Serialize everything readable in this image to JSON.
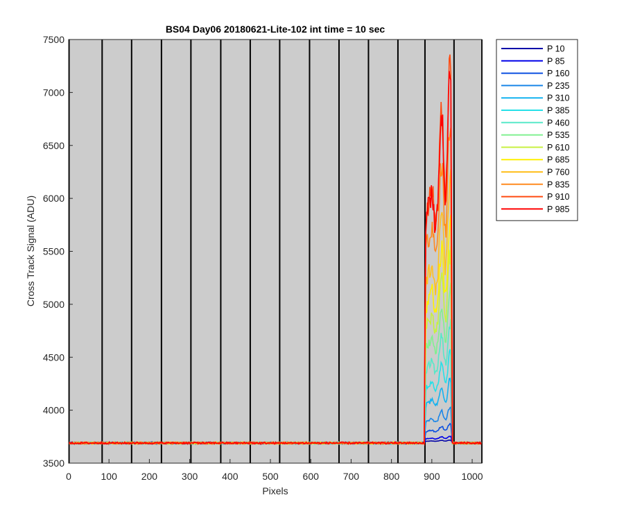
{
  "chart_data": {
    "type": "line",
    "title": "BS04 Day06 20180621-Lite-102 int time = 10 sec",
    "xlabel": "Pixels",
    "ylabel": "Cross Track Signal (ADU)",
    "xlim": [
      0,
      1024
    ],
    "ylim": [
      3500,
      7500
    ],
    "xticks": [
      0,
      100,
      200,
      300,
      400,
      500,
      600,
      700,
      800,
      900,
      1000
    ],
    "yticks": [
      3500,
      4000,
      4500,
      5000,
      5500,
      6000,
      6500,
      7000,
      7500
    ],
    "background": "#cccccc",
    "grid": false,
    "legend_position": "outside-right",
    "baseline": 3690,
    "illuminated_range": [
      882,
      950
    ],
    "vertical_lines_x": [
      1,
      83,
      156,
      230,
      303,
      377,
      450,
      523,
      597,
      670,
      743,
      816,
      883,
      955,
      1024
    ],
    "series": [
      {
        "name": "P 10",
        "color": "#0000a8",
        "peak": 3720
      },
      {
        "name": "P 85",
        "color": "#0000e8",
        "peak": 3760
      },
      {
        "name": "P 160",
        "color": "#0a4fe0",
        "peak": 3880
      },
      {
        "name": "P 235",
        "color": "#1a86e8",
        "peak": 4050
      },
      {
        "name": "P 310",
        "color": "#13b2f0",
        "peak": 4320
      },
      {
        "name": "P 385",
        "color": "#25e0e8",
        "peak": 4600
      },
      {
        "name": "P 460",
        "color": "#56e8c8",
        "peak": 4900
      },
      {
        "name": "P 535",
        "color": "#80f090",
        "peak": 5250
      },
      {
        "name": "P 610",
        "color": "#c8f040",
        "peak": 5580
      },
      {
        "name": "P 685",
        "color": "#fff000",
        "peak": 5900
      },
      {
        "name": "P 760",
        "color": "#ffc020",
        "peak": 6350
      },
      {
        "name": "P 835",
        "color": "#ff8a20",
        "peak": 6900
      },
      {
        "name": "P 910",
        "color": "#ff4a10",
        "peak": 7450
      },
      {
        "name": "P 985",
        "color": "#ff0000",
        "peak": 7420
      }
    ]
  }
}
